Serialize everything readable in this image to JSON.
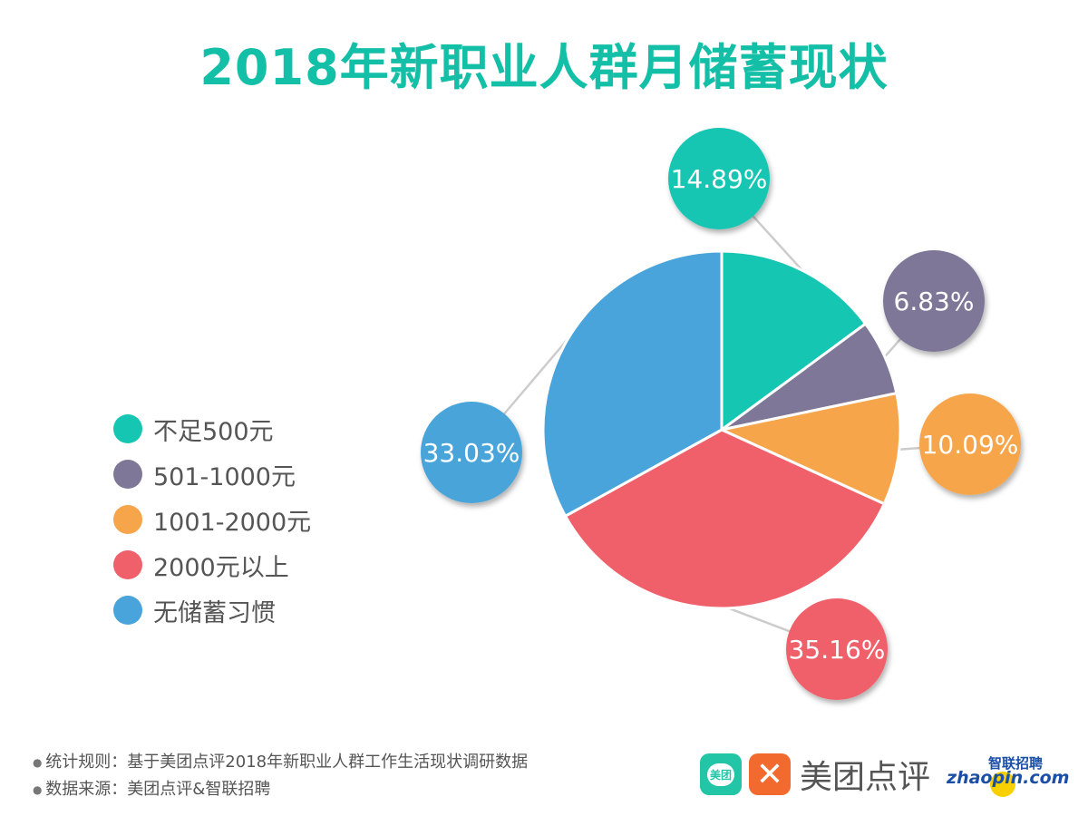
{
  "title": "2018年新职业人群月储蓄现状",
  "chart_data": {
    "type": "pie",
    "title": "2018年新职业人群月储蓄现状",
    "categories": [
      "不足500元",
      "501-1000元",
      "1001-2000元",
      "2000元以上",
      "无储蓄习惯"
    ],
    "values": [
      14.89,
      6.83,
      10.09,
      35.16,
      33.03
    ],
    "labels": [
      "14.89%",
      "6.83%",
      "10.09%",
      "35.16%",
      "33.03%"
    ],
    "colors": [
      "#15c6b3",
      "#7f7797",
      "#f6a54b",
      "#f0606a",
      "#48a4da"
    ],
    "start": "12 o'clock, clockwise",
    "legend": "left"
  },
  "footer": {
    "rule": "统计规则：基于美团点评2018年新职业人群工作生活现状调研数据",
    "source": "数据来源：美团点评&智联招聘"
  },
  "logos": {
    "meituan": "美团",
    "dianping": "美团点评",
    "zhaopin_cn": "智联招聘",
    "zhaopin_en": "zhaopin.com"
  }
}
